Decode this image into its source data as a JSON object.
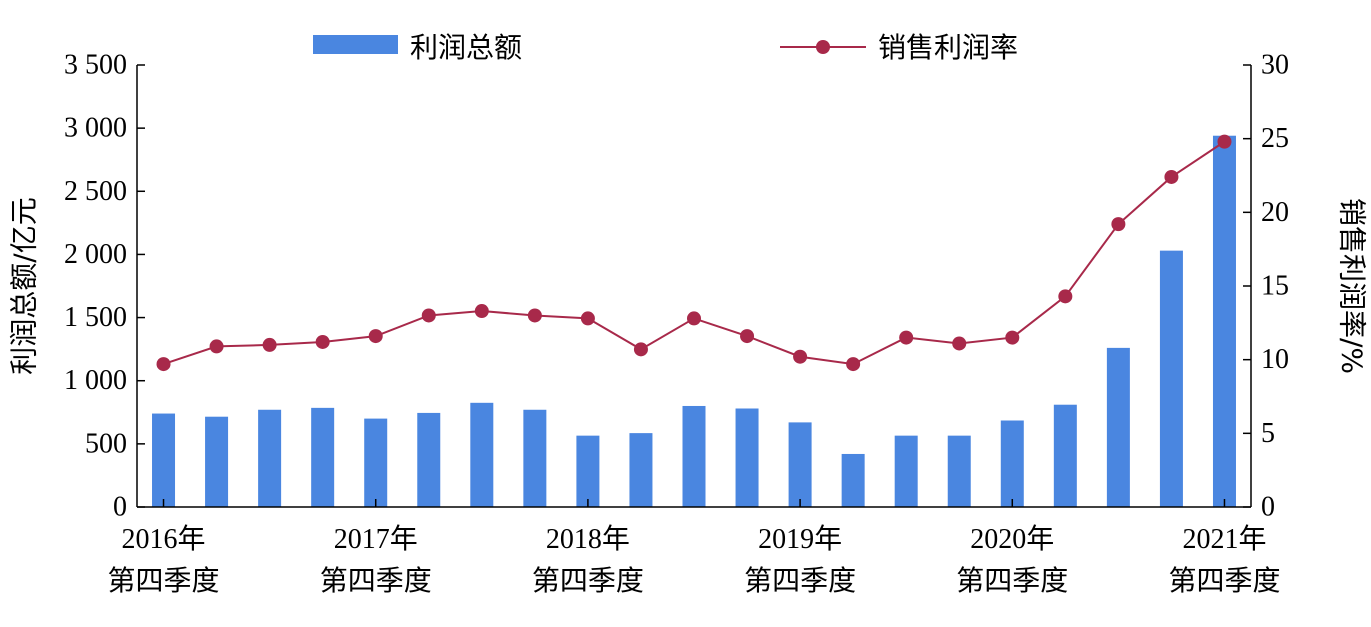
{
  "chart_data": {
    "type": "bar+line",
    "categories": [
      "2016Q4",
      "2017Q1",
      "2017Q2",
      "2017Q3",
      "2017Q4",
      "2018Q1",
      "2018Q2",
      "2018Q3",
      "2018Q4",
      "2019Q1",
      "2019Q2",
      "2019Q3",
      "2019Q4",
      "2020Q1",
      "2020Q2",
      "2020Q3",
      "2020Q4",
      "2021Q1",
      "2021Q2",
      "2021Q3",
      "2021Q4"
    ],
    "x_tick_labels": [
      {
        "index": 0,
        "year": "2016年",
        "quarter": "第四季度"
      },
      {
        "index": 4,
        "year": "2017年",
        "quarter": "第四季度"
      },
      {
        "index": 8,
        "year": "2018年",
        "quarter": "第四季度"
      },
      {
        "index": 12,
        "year": "2019年",
        "quarter": "第四季度"
      },
      {
        "index": 16,
        "year": "2020年",
        "quarter": "第四季度"
      },
      {
        "index": 20,
        "year": "2021年",
        "quarter": "第四季度"
      }
    ],
    "series": [
      {
        "name": "利润总额",
        "type": "bar",
        "axis": "left",
        "color": "#4a86e0",
        "values": [
          740,
          715,
          770,
          785,
          700,
          745,
          825,
          770,
          565,
          585,
          800,
          780,
          670,
          420,
          565,
          565,
          685,
          810,
          1260,
          2030,
          2940
        ]
      },
      {
        "name": "销售利润率",
        "type": "line",
        "axis": "right",
        "color": "#a8294a",
        "values": [
          9.7,
          10.9,
          11.0,
          11.2,
          11.6,
          13.0,
          13.3,
          13.0,
          12.8,
          10.7,
          12.8,
          11.6,
          10.2,
          9.7,
          11.5,
          11.1,
          11.5,
          14.3,
          19.2,
          22.4,
          24.8
        ]
      }
    ],
    "y_left": {
      "label": "利润总额/亿元",
      "lim": [
        0,
        3500
      ],
      "ticks": [
        0,
        500,
        1000,
        1500,
        2000,
        2500,
        3000,
        3500
      ],
      "tick_labels": [
        "0",
        "500",
        "1 000",
        "1 500",
        "2 000",
        "2 500",
        "3 000",
        "3 500"
      ]
    },
    "y_right": {
      "label": "销售利润率/%",
      "lim": [
        0,
        30
      ],
      "ticks": [
        0,
        5,
        10,
        15,
        20,
        25,
        30
      ],
      "tick_labels": [
        "0",
        "5",
        "10",
        "15",
        "20",
        "25",
        "30"
      ]
    },
    "legend": "top",
    "grid": false
  }
}
